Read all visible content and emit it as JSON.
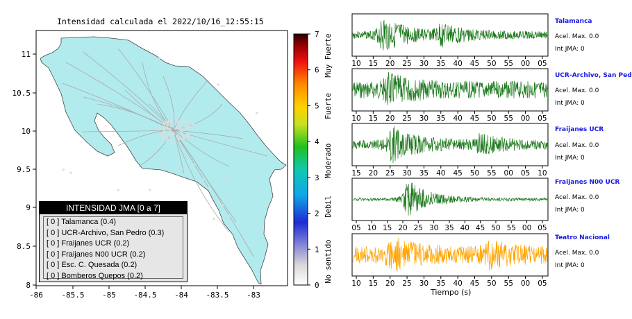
{
  "map": {
    "title": "Intensidad calculada el 2022/10/16_12:55:15",
    "lon_ticks": [
      "-86",
      "-85.5",
      "-85",
      "-84.5",
      "-84",
      "-83.5",
      "-83"
    ],
    "lat_ticks": [
      "11",
      "10.5",
      "10",
      "9.5",
      "9",
      "8.5",
      "8"
    ],
    "land_color": "#b2ebee",
    "legend": {
      "title": "INTENSIDAD JMA [0 a 7]",
      "rows": [
        "[ 0 ]  Talamanca (0.4)",
        "[ 0 ]  UCR-Archivo, San Pedro (0.3)",
        "[ 0 ]  Fraijanes UCR (0.2)",
        "[ 0 ]  Fraijanes N00 UCR (0.2)",
        "[ 0 ]  Esc. C. Quesada (0.2)",
        "[ 0 ]  Bomberos Quepos (0.2)"
      ]
    }
  },
  "colorbar": {
    "ticks": [
      "7",
      "6",
      "5",
      "4",
      "3",
      "2",
      "1",
      "0"
    ],
    "labels": [
      "Muy Fuerte",
      "Fuerte",
      "Moderado",
      "Debil",
      "No sentido"
    ]
  },
  "waveforms": {
    "xlabel": "Tiempo (s)",
    "panels": [
      {
        "name": "Talamanca",
        "acel": "Acel. Max. 0.0",
        "jma": "Int JMA: 0",
        "ticks": [
          "10",
          "15",
          "20",
          "25",
          "30",
          "35",
          "40",
          "45",
          "50",
          "55",
          "00",
          "05"
        ],
        "color": "#1e7a1e",
        "bursts": [
          [
            0.15,
            0.9
          ],
          [
            0.45,
            0.5
          ]
        ],
        "base": 0.2,
        "seed": 3
      },
      {
        "name": "UCR-Archivo, San Pedro",
        "acel": "Acel. Max. 0.0",
        "jma": "Int JMA: 0",
        "ticks": [
          "10",
          "15",
          "20",
          "25",
          "30",
          "35",
          "40",
          "45",
          "50",
          "55",
          "00",
          "05"
        ],
        "color": "#1e7a1e",
        "bursts": [
          [
            0.18,
            0.55
          ]
        ],
        "base": 0.45,
        "seed": 7
      },
      {
        "name": "Fraijanes UCR",
        "acel": "Acel. Max. 0.0",
        "jma": "Int JMA: 0",
        "ticks": [
          "15",
          "20",
          "25",
          "30",
          "35",
          "40",
          "45",
          "50",
          "55",
          "00",
          "05",
          "10"
        ],
        "color": "#1e7a1e",
        "bursts": [
          [
            0.2,
            0.9
          ],
          [
            0.65,
            0.4
          ]
        ],
        "base": 0.25,
        "seed": 11
      },
      {
        "name": "Fraijanes N00 UCR",
        "acel": "Acel. Max. 0.0",
        "jma": "Int JMA: 0",
        "ticks": [
          "05",
          "10",
          "15",
          "20",
          "25",
          "30",
          "35",
          "40",
          "45",
          "50",
          "55",
          "00",
          "05"
        ],
        "color": "#1e7a1e",
        "bursts": [
          [
            0.28,
            1.0
          ]
        ],
        "base": 0.08,
        "seed": 19
      },
      {
        "name": "Teatro Nacional",
        "acel": "Acel. Max. 0.0",
        "jma": "Int JMA: 0",
        "ticks": [
          "10",
          "15",
          "20",
          "25",
          "30",
          "35",
          "40",
          "45",
          "50",
          "55",
          "00",
          "05"
        ],
        "color": "#ffa500",
        "bursts": [
          [
            0.2,
            0.7
          ],
          [
            0.7,
            0.45
          ]
        ],
        "base": 0.45,
        "seed": 23
      }
    ]
  }
}
